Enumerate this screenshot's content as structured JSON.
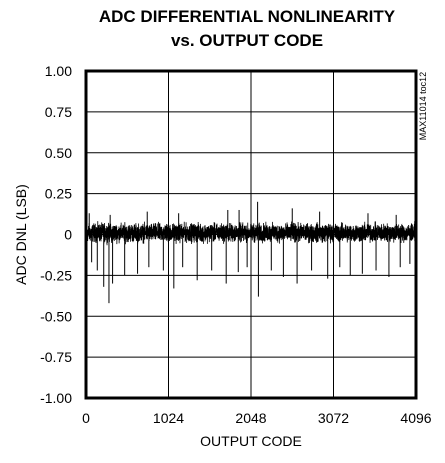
{
  "chart_data": {
    "type": "line",
    "title": "ADC DIFFERENTIAL NONLINEARITY",
    "subtitle": "vs. OUTPUT CODE",
    "xlabel": "OUTPUT CODE",
    "ylabel": "ADC DNL (LSB)",
    "xlim": [
      0,
      4096
    ],
    "ylim": [
      -1.0,
      1.0
    ],
    "x_ticks": [
      "0",
      "1024",
      "2048",
      "3072",
      "4096"
    ],
    "y_ticks": [
      "1.00",
      "0.75",
      "0.50",
      "0.25",
      "0",
      "-0.25",
      "-0.50",
      "-0.75",
      "-1.00"
    ],
    "grid": true,
    "side_note": "MAX11014 toc12",
    "series": [
      {
        "noise_band": [
          -0.07,
          0.09
        ],
        "noise_samples": 4096,
        "positive_spikes": [
          {
            "x": 40,
            "y": 0.13
          },
          {
            "x": 300,
            "y": 0.12
          },
          {
            "x": 760,
            "y": 0.14
          },
          {
            "x": 1150,
            "y": 0.13
          },
          {
            "x": 1760,
            "y": 0.15
          },
          {
            "x": 1900,
            "y": 0.15
          },
          {
            "x": 2130,
            "y": 0.2
          },
          {
            "x": 2560,
            "y": 0.16
          },
          {
            "x": 2900,
            "y": 0.14
          },
          {
            "x": 3500,
            "y": 0.13
          },
          {
            "x": 3850,
            "y": 0.12
          }
        ],
        "negative_spikes": [
          {
            "x": 70,
            "y": -0.17
          },
          {
            "x": 140,
            "y": -0.22
          },
          {
            "x": 220,
            "y": -0.32
          },
          {
            "x": 285,
            "y": -0.42
          },
          {
            "x": 330,
            "y": -0.3
          },
          {
            "x": 480,
            "y": -0.25
          },
          {
            "x": 640,
            "y": -0.24
          },
          {
            "x": 780,
            "y": -0.2
          },
          {
            "x": 960,
            "y": -0.22
          },
          {
            "x": 1090,
            "y": -0.33
          },
          {
            "x": 1200,
            "y": -0.2
          },
          {
            "x": 1380,
            "y": -0.28
          },
          {
            "x": 1560,
            "y": -0.22
          },
          {
            "x": 1740,
            "y": -0.3
          },
          {
            "x": 1890,
            "y": -0.23
          },
          {
            "x": 2000,
            "y": -0.2
          },
          {
            "x": 2140,
            "y": -0.38
          },
          {
            "x": 2300,
            "y": -0.22
          },
          {
            "x": 2450,
            "y": -0.26
          },
          {
            "x": 2620,
            "y": -0.3
          },
          {
            "x": 2800,
            "y": -0.22
          },
          {
            "x": 3000,
            "y": -0.27
          },
          {
            "x": 3150,
            "y": -0.2
          },
          {
            "x": 3280,
            "y": -0.25
          },
          {
            "x": 3430,
            "y": -0.24
          },
          {
            "x": 3600,
            "y": -0.22
          },
          {
            "x": 3760,
            "y": -0.26
          },
          {
            "x": 3900,
            "y": -0.2
          },
          {
            "x": 4020,
            "y": -0.18
          }
        ]
      }
    ]
  }
}
